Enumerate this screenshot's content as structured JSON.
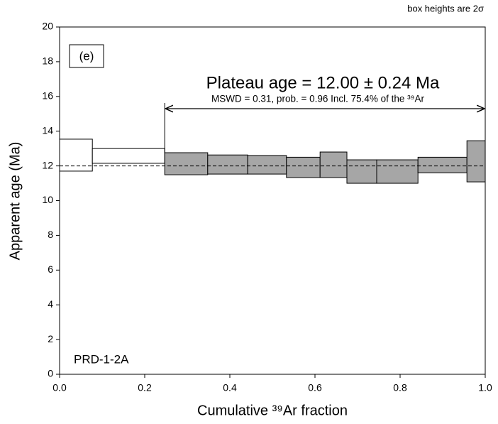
{
  "chart_data": {
    "type": "age_spectrum",
    "note_top": "box heights are 2σ",
    "panel_label": "(e)",
    "sample": "PRD-1-2A",
    "plateau_text": "Plateau age = 12.00 ± 0.24 Ma",
    "stats_text": "MSWD = 0.31, prob. = 0.96 Incl. 75.4% of the ³⁹Ar",
    "xlabel": "Cumulative ³⁹Ar fraction",
    "ylabel": "Apparent age (Ma)",
    "xlim": [
      0,
      1
    ],
    "ylim": [
      0,
      20
    ],
    "xticks": [
      {
        "value": 0,
        "label": "0.0"
      },
      {
        "value": 0.2,
        "label": "0.2"
      },
      {
        "value": 0.4,
        "label": "0.4"
      },
      {
        "value": 0.6,
        "label": "0.6"
      },
      {
        "value": 0.8,
        "label": "0.8"
      },
      {
        "value": 1,
        "label": "1.0"
      }
    ],
    "yticks": [
      0,
      2,
      4,
      6,
      8,
      10,
      12,
      14,
      16,
      18,
      20
    ],
    "plateau_age": 12,
    "plateau_range": [
      0.247,
      1
    ],
    "color": "#ffffff",
    "plateau_color": "#a6a6a6",
    "steps": [
      {
        "x": [
          0,
          0.077
        ],
        "low": 11.7,
        "high": 13.54,
        "plateau": false
      },
      {
        "x": [
          0.077,
          0.247
        ],
        "low": 12.15,
        "high": 13.0,
        "plateau": false
      },
      {
        "x": [
          0.247,
          0.348
        ],
        "low": 11.49,
        "high": 12.76,
        "plateau": true
      },
      {
        "x": [
          0.348,
          0.442
        ],
        "low": 11.53,
        "high": 12.63,
        "plateau": true
      },
      {
        "x": [
          0.442,
          0.533
        ],
        "low": 11.53,
        "high": 12.6,
        "plateau": true
      },
      {
        "x": [
          0.533,
          0.612
        ],
        "low": 11.33,
        "high": 12.5,
        "plateau": true
      },
      {
        "x": [
          0.612,
          0.675
        ],
        "low": 11.33,
        "high": 12.8,
        "plateau": true
      },
      {
        "x": [
          0.675,
          0.745
        ],
        "low": 11.0,
        "high": 12.35,
        "plateau": true
      },
      {
        "x": [
          0.745,
          0.842
        ],
        "low": 11.0,
        "high": 12.35,
        "plateau": true
      },
      {
        "x": [
          0.842,
          0.957
        ],
        "low": 11.6,
        "high": 12.5,
        "plateau": true
      },
      {
        "x": [
          0.957,
          1
        ],
        "low": 11.08,
        "high": 13.45,
        "plateau": true
      }
    ]
  }
}
